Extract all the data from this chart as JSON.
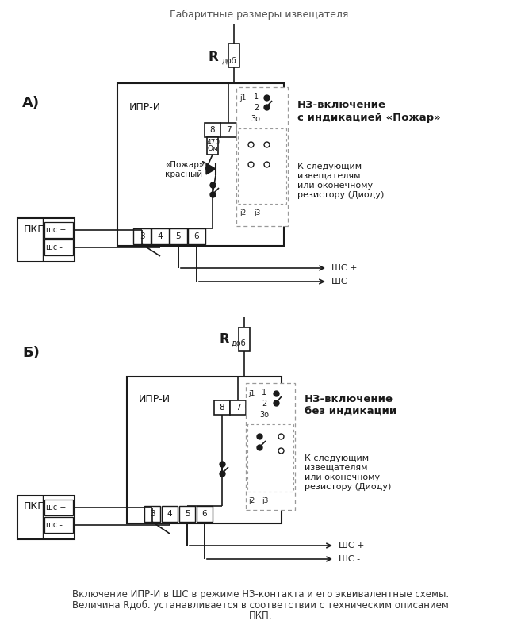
{
  "bg": "#ffffff",
  "fg": "#1a1a1a",
  "gray": "#999999",
  "top_note": "Габаритные размеры извещателя.",
  "footer_line1": "Включение ИПР-И в ШС в режиме НЗ-контакта и его эквивалентные схемы.",
  "footer_line2": "Величина Rдоб. устанавливается в соответствии с техническим описанием",
  "footer_line3": "ПКП.",
  "A_label": "А)",
  "B_label": "Б)",
  "NZ_A_1": "НЗ-включение",
  "NZ_A_2": "с индикацией «Пожар»",
  "NZ_B_1": "НЗ-включение",
  "NZ_B_2": "без индикации",
  "next_1": "К следующим",
  "next_2": "извещателям",
  "next_3": "или оконечному",
  "next_4": "резистору (Диоду)",
  "shsp": "шс +",
  "shsm": "шс -",
  "SHSp": "ШС +",
  "SHSm": "ШС -",
  "IPR": "ИПР-И",
  "PKP": "ПКП",
  "R_bold": "R",
  "dob": "доб",
  "ohm_1": "470",
  "ohm_2": "Ом",
  "pozhar_1": "«Пожар»",
  "pozhar_2": "красный",
  "pin3": "3",
  "pin4": "4",
  "pin5": "5",
  "pin6": "6",
  "pin8": "8",
  "pin7": "7",
  "j1": "j1",
  "p1": "1",
  "p2": "2",
  "p3": "3о",
  "j2": "j2",
  "j3": "j3"
}
